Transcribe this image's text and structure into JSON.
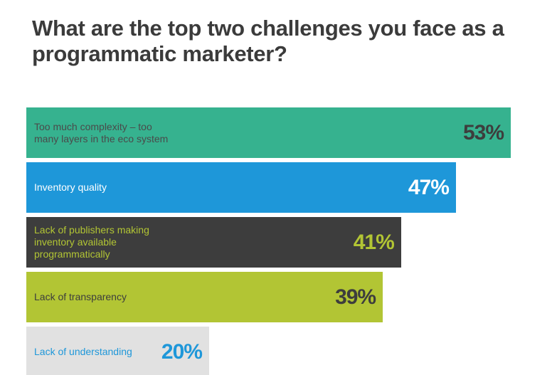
{
  "chart_data": {
    "type": "bar",
    "orientation": "horizontal",
    "title": "What are the top two challenges you face as a programmatic marketer?",
    "categories": [
      "Too much complexity – too many layers in the eco system",
      "Inventory quality",
      "Lack of publishers making inventory available programmatically",
      "Lack of transparency",
      "Lack of understanding"
    ],
    "values": [
      53,
      47,
      41,
      39,
      20
    ],
    "value_labels": [
      "53%",
      "47%",
      "41%",
      "39%",
      "20%"
    ],
    "colors": [
      "#36b28f",
      "#1e97d9",
      "#3d3d3d",
      "#b2c534",
      "#e1e1e1"
    ]
  }
}
